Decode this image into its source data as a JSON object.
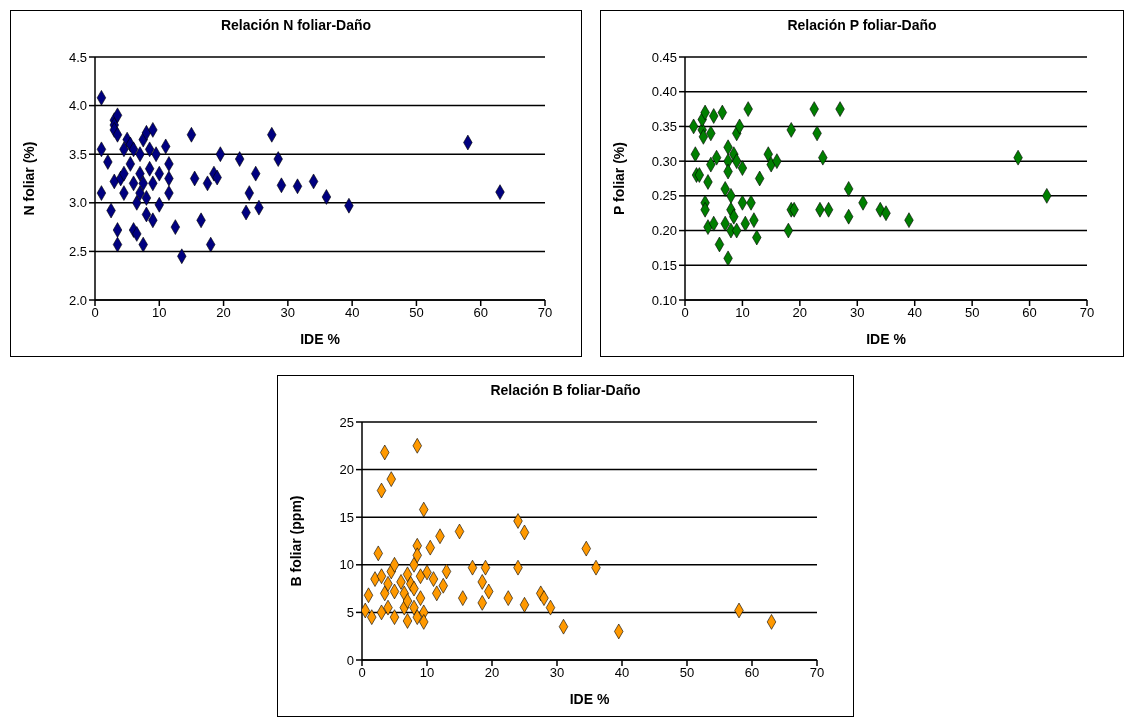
{
  "chart_data": [
    {
      "type": "scatter",
      "title": "Relación N foliar-Daño",
      "xlabel": "IDE %",
      "ylabel": "N foliar (%)",
      "marker": "diamond",
      "grid": "y",
      "xlim": [
        0,
        70
      ],
      "xticks": [
        0,
        10,
        20,
        30,
        40,
        50,
        60,
        70
      ],
      "ylim": [
        2.0,
        4.5
      ],
      "yticks": [
        {
          "value": 2.0,
          "label": "2.0"
        },
        2.5,
        {
          "value": 3.0,
          "label": "3.0"
        },
        3.5,
        {
          "value": 4.0,
          "label": "4.0"
        },
        4.5
      ],
      "series": [
        {
          "color": "#000080",
          "x": [
            1,
            1,
            1,
            2,
            2.5,
            3,
            3,
            3,
            3.5,
            3.5,
            3,
            3.5,
            3.5,
            4,
            4.5,
            4.5,
            4.5,
            5,
            5.5,
            5.5,
            6,
            6,
            6,
            6.5,
            6.5,
            7,
            7,
            7,
            7.5,
            7.5,
            7.5,
            8,
            8,
            8,
            8.5,
            8.5,
            9,
            9,
            9,
            9.5,
            10,
            10,
            11,
            11.5,
            11.5,
            11.5,
            12.5,
            13.5,
            15,
            15.5,
            16.5,
            17.5,
            18,
            18.5,
            19,
            19.5,
            22.5,
            23.5,
            24,
            25,
            25.5,
            27.5,
            28.5,
            29,
            31.5,
            34,
            36,
            39.5,
            58,
            63
          ],
          "values": [
            4.08,
            3.55,
            3.1,
            3.42,
            2.92,
            3.85,
            3.8,
            3.75,
            3.9,
            3.7,
            3.22,
            2.57,
            2.72,
            3.25,
            3.55,
            3.3,
            3.1,
            3.65,
            3.6,
            3.4,
            3.55,
            3.2,
            2.72,
            2.68,
            3.0,
            3.1,
            3.3,
            3.5,
            3.65,
            3.2,
            2.57,
            3.72,
            3.05,
            2.88,
            3.55,
            3.35,
            3.75,
            3.2,
            2.82,
            3.5,
            3.3,
            2.98,
            3.58,
            3.4,
            3.25,
            3.1,
            2.75,
            2.45,
            3.7,
            3.25,
            2.82,
            3.2,
            2.57,
            3.3,
            3.26,
            3.5,
            3.45,
            2.9,
            3.1,
            3.3,
            2.95,
            3.7,
            3.45,
            3.18,
            3.17,
            3.22,
            3.06,
            2.97,
            3.62,
            3.11
          ]
        }
      ]
    },
    {
      "type": "scatter",
      "title": "Relación P foliar-Daño",
      "xlabel": "IDE %",
      "ylabel": "P foliar (%)",
      "marker": "diamond",
      "grid": "y",
      "xlim": [
        0,
        70
      ],
      "xticks": [
        0,
        10,
        20,
        30,
        40,
        50,
        60,
        70
      ],
      "ylim": [
        0.1,
        0.45
      ],
      "yticks": [
        {
          "value": 0.1,
          "label": "0.10"
        },
        0.15,
        {
          "value": 0.2,
          "label": "0.20"
        },
        0.25,
        {
          "value": 0.3,
          "label": "0.30"
        },
        0.35,
        {
          "value": 0.4,
          "label": "0.40"
        },
        0.45
      ],
      "series": [
        {
          "color": "#007f00",
          "x": [
            1.5,
            1.8,
            2,
            2.5,
            3,
            3,
            3.2,
            3.5,
            3.5,
            3.5,
            4,
            4,
            4.5,
            4.5,
            5,
            5,
            5.5,
            6,
            6.5,
            7,
            7,
            7.5,
            7.5,
            7.5,
            7.5,
            8,
            8,
            8,
            8.5,
            8.5,
            9,
            9,
            9,
            9.5,
            10,
            10,
            10.5,
            11,
            11.5,
            12,
            12.5,
            13,
            14.5,
            15,
            16,
            18,
            18.5,
            18.5,
            19,
            22.5,
            23,
            23.5,
            24,
            25,
            27,
            28.5,
            28.5,
            31,
            34,
            35,
            39,
            58,
            63
          ],
          "values": [
            0.35,
            0.31,
            0.28,
            0.28,
            0.345,
            0.36,
            0.335,
            0.37,
            0.24,
            0.23,
            0.205,
            0.27,
            0.34,
            0.295,
            0.365,
            0.21,
            0.305,
            0.18,
            0.37,
            0.26,
            0.21,
            0.32,
            0.3,
            0.285,
            0.16,
            0.25,
            0.23,
            0.2,
            0.31,
            0.22,
            0.34,
            0.3,
            0.2,
            0.35,
            0.24,
            0.29,
            0.21,
            0.375,
            0.24,
            0.215,
            0.19,
            0.275,
            0.31,
            0.295,
            0.3,
            0.2,
            0.345,
            0.23,
            0.23,
            0.375,
            0.34,
            0.23,
            0.305,
            0.23,
            0.375,
            0.26,
            0.22,
            0.24,
            0.23,
            0.225,
            0.215,
            0.305,
            0.25
          ]
        }
      ]
    },
    {
      "type": "scatter",
      "title": "Relación B foliar-Daño",
      "xlabel": "IDE %",
      "ylabel": "B foliar (ppm)",
      "marker": "diamond",
      "grid": "y",
      "xlim": [
        0,
        70
      ],
      "xticks": [
        0,
        10,
        20,
        30,
        40,
        50,
        60,
        70
      ],
      "ylim": [
        0,
        25
      ],
      "yticks": [
        0,
        5,
        10,
        15,
        20,
        25
      ],
      "series": [
        {
          "color": "#ff9900",
          "x": [
            0.5,
            1,
            1.5,
            2,
            2.5,
            3,
            3,
            3,
            3.5,
            3.5,
            4,
            4,
            4.5,
            4.5,
            5,
            5,
            5,
            6,
            6.5,
            6.5,
            7,
            7,
            7,
            7.5,
            8,
            8,
            8,
            8.5,
            8.5,
            8.5,
            8.5,
            9,
            9,
            9.5,
            9.5,
            9.5,
            10,
            10.5,
            11,
            11.5,
            12,
            12.5,
            13,
            15,
            15.5,
            17,
            18.5,
            19,
            18.5,
            19.5,
            22.5,
            24,
            24,
            25,
            25,
            27.5,
            28,
            29,
            31,
            34.5,
            36,
            39.5,
            58,
            63
          ],
          "values": [
            5.2,
            6.8,
            4.5,
            8.5,
            11.2,
            17.8,
            8.8,
            5,
            21.8,
            7,
            8,
            5.5,
            19,
            9.3,
            10,
            7.2,
            4.5,
            8.2,
            7,
            5.5,
            9,
            6.2,
            4.1,
            8,
            10,
            7.5,
            5.5,
            22.5,
            12,
            11,
            4.5,
            8.8,
            6.5,
            15.8,
            5,
            4,
            9.2,
            11.8,
            8.5,
            7,
            13,
            7.8,
            9.3,
            13.5,
            6.5,
            9.7,
            8.2,
            9.7,
            6,
            7.2,
            6.5,
            14.6,
            9.7,
            13.4,
            5.8,
            7,
            6.5,
            5.5,
            3.5,
            11.7,
            9.7,
            3,
            5.2,
            4
          ]
        }
      ]
    }
  ]
}
